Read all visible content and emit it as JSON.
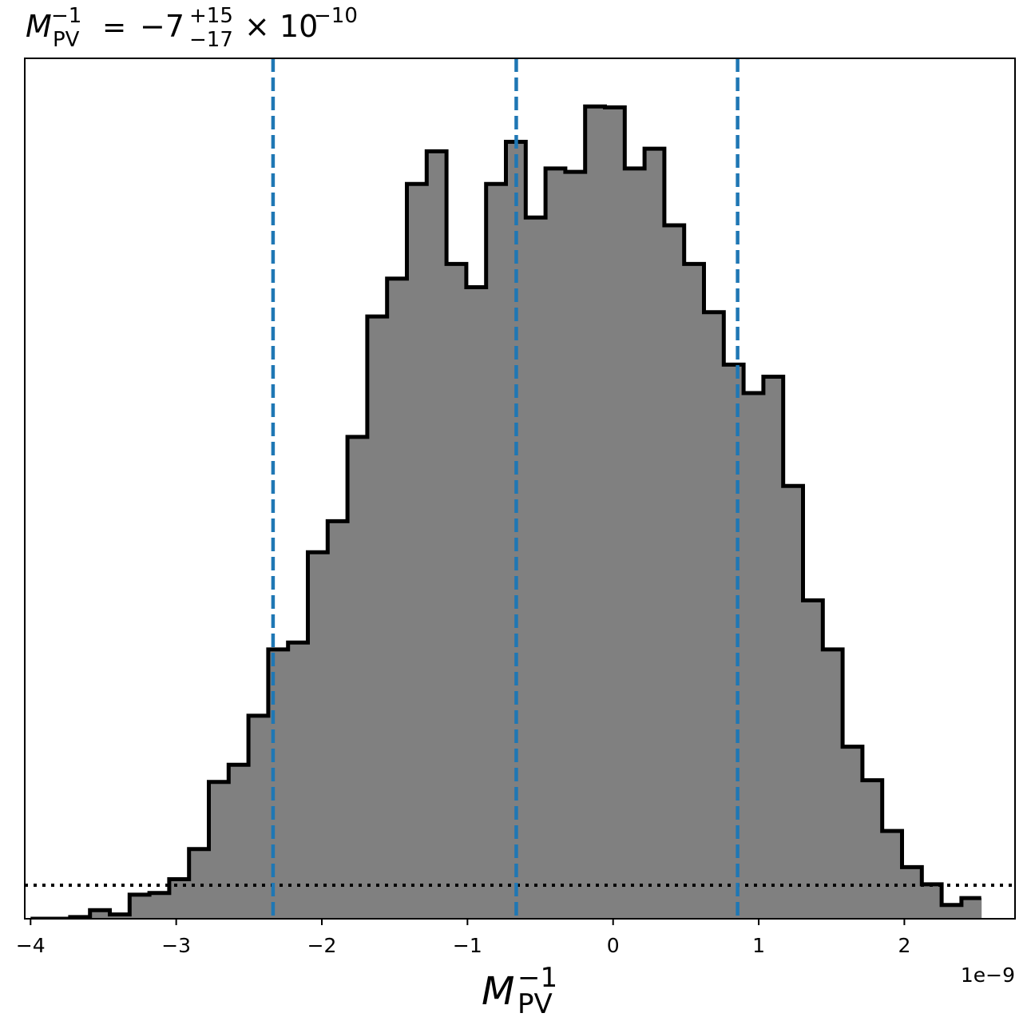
{
  "chart_data": {
    "type": "histogram",
    "title": {
      "symbol": "M",
      "subscript": "PV",
      "superscript": "−1",
      "equals": "=",
      "value": "−7",
      "upper_error": "+15",
      "lower_error": "−17",
      "times": "×",
      "base": "10",
      "exponent": "−10"
    },
    "xlabel": {
      "symbol": "M",
      "subscript": "PV",
      "superscript": "−1"
    },
    "x_offset_text": "1e−9",
    "xlim": [
      -4.04,
      2.76
    ],
    "ylim": [
      0,
      1.0
    ],
    "x_scale_factor": 1e-09,
    "xticks": [
      {
        "value": -4,
        "label": "−4"
      },
      {
        "value": -3,
        "label": "−3"
      },
      {
        "value": -2,
        "label": "−2"
      },
      {
        "value": -1,
        "label": "−1"
      },
      {
        "value": 0,
        "label": "0"
      },
      {
        "value": 1,
        "label": "1"
      },
      {
        "value": 2,
        "label": "2"
      }
    ],
    "bin_edges": [
      -4.0,
      -3.864,
      -3.728,
      -3.592,
      -3.456,
      -3.32,
      -3.184,
      -3.048,
      -2.912,
      -2.776,
      -2.64,
      -2.504,
      -2.368,
      -2.232,
      -2.096,
      -1.96,
      -1.824,
      -1.688,
      -1.552,
      -1.416,
      -1.28,
      -1.144,
      -1.008,
      -0.872,
      -0.736,
      -0.6,
      -0.464,
      -0.328,
      -0.192,
      -0.056,
      0.08,
      0.216,
      0.352,
      0.488,
      0.624,
      0.76,
      0.896,
      1.032,
      1.168,
      1.304,
      1.44,
      1.576,
      1.712,
      1.848,
      1.984,
      2.12,
      2.256,
      2.392
    ],
    "counts": [
      0.0,
      0.0,
      0.002,
      0.01,
      0.005,
      0.028,
      0.03,
      0.046,
      0.081,
      0.159,
      0.179,
      0.236,
      0.313,
      0.321,
      0.426,
      0.462,
      0.56,
      0.7,
      0.744,
      0.854,
      0.892,
      0.761,
      0.734,
      0.854,
      0.903,
      0.815,
      0.872,
      0.868,
      0.944,
      0.943,
      0.872,
      0.895,
      0.806,
      0.761,
      0.705,
      0.644,
      0.611,
      0.63,
      0.503,
      0.37,
      0.313,
      0.2,
      0.161,
      0.102,
      0.06,
      0.04,
      0.016,
      0.024
    ],
    "vlines": [
      -2.335,
      -0.665,
      0.855
    ],
    "vline_color": "#1f77b4",
    "hline": 0.039,
    "fill_color": "#808080",
    "edge_color": "#000000"
  }
}
